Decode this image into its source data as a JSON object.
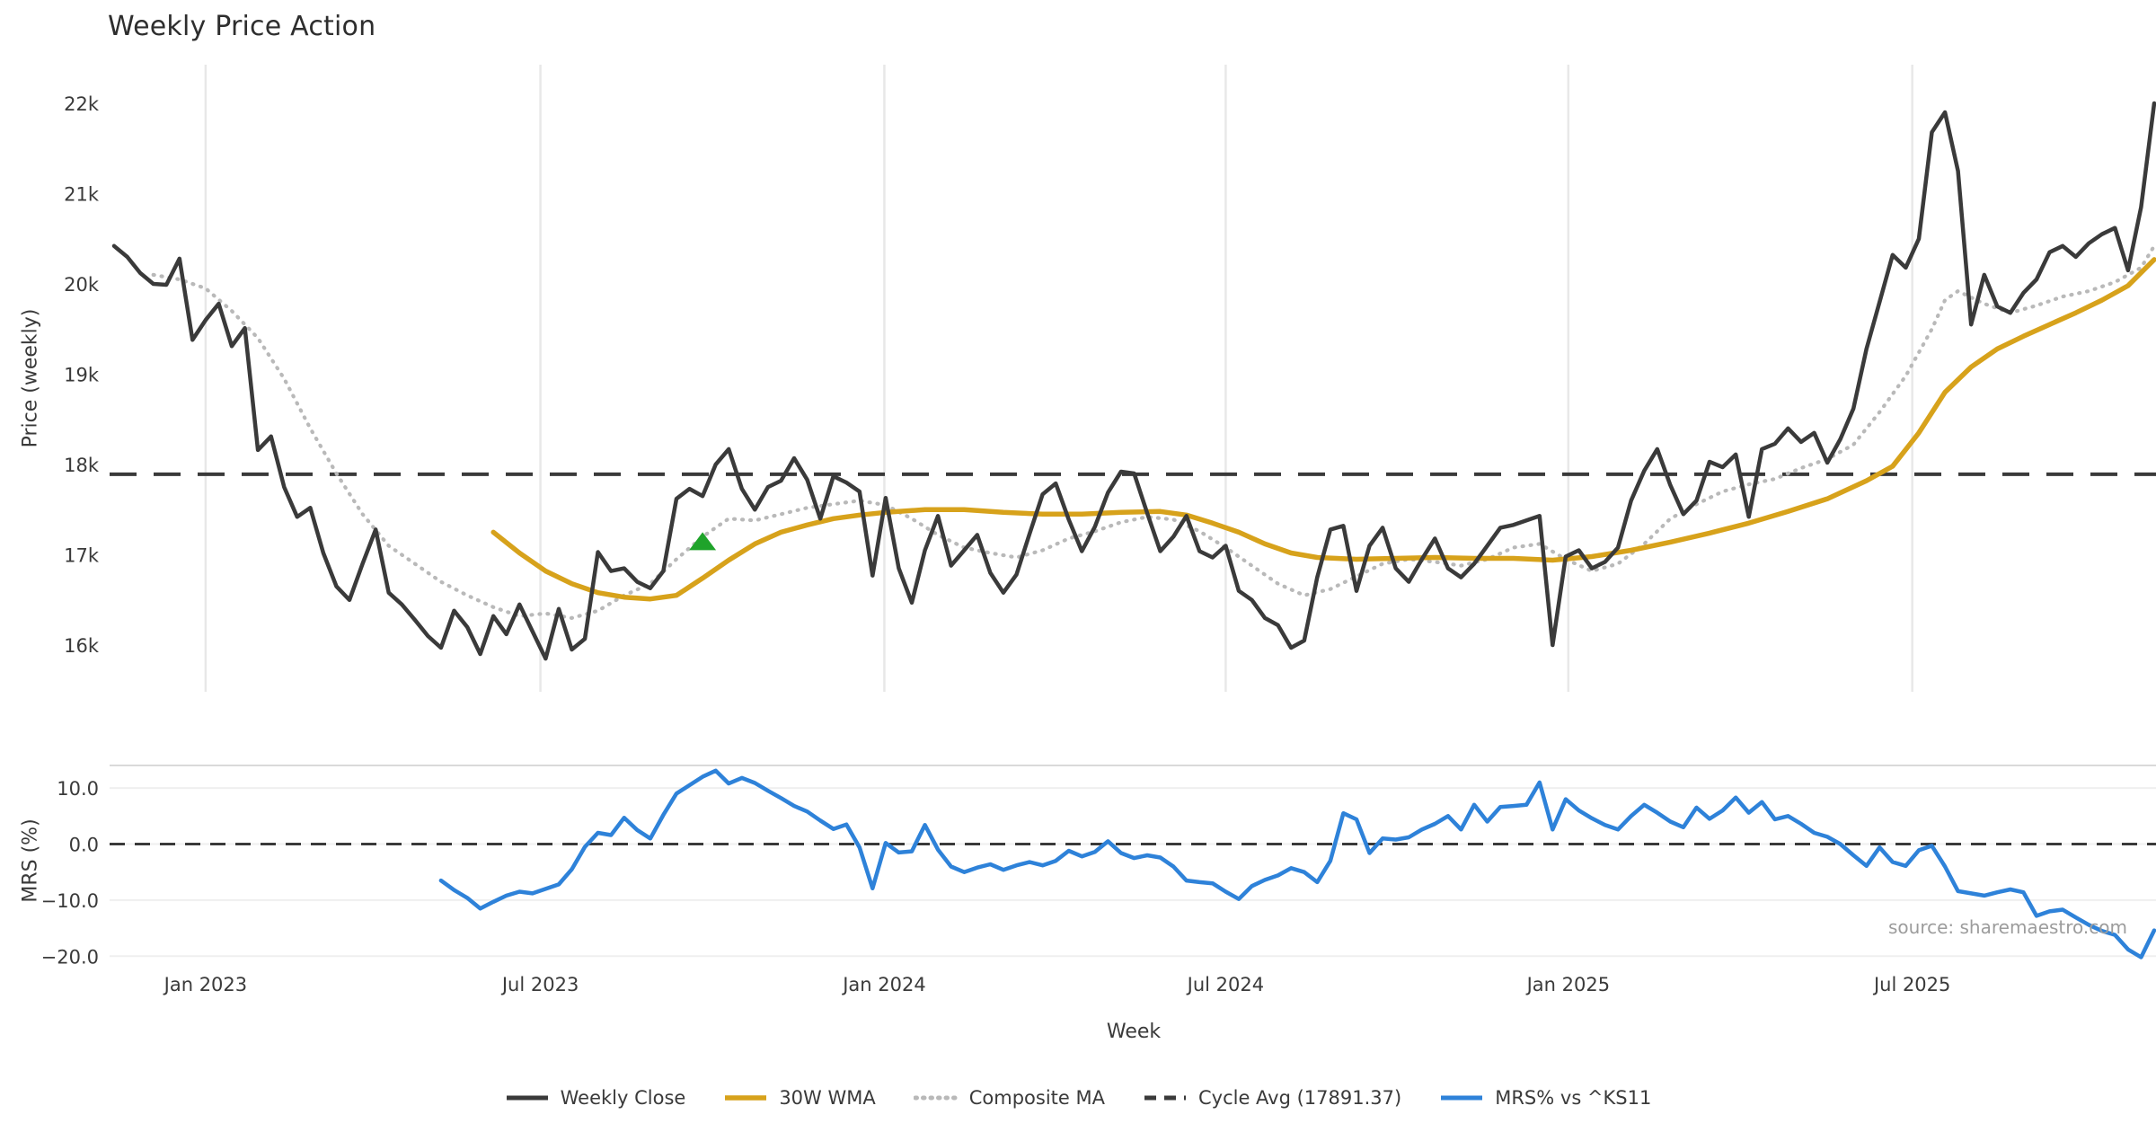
{
  "title": "Weekly Price Action",
  "source_note": "source: sharemaestro.com",
  "colors": {
    "close": "#3a3a3a",
    "wma": "#d7a21b",
    "composite": "#b9b9b9",
    "cycle": "#3a3a3a",
    "mrs": "#2e82d9",
    "signal": "#1fa32a",
    "grid": "#e8e8e8",
    "grid_minor": "#efefef",
    "panel_border": "#dadada",
    "text": "#3a3a3a",
    "muted_text": "#9c9c9c",
    "background": "#ffffff"
  },
  "x_axis": {
    "label": "Week",
    "weeks_total": 156,
    "ticks": [
      {
        "week": 7.0,
        "label": "Jan 2023"
      },
      {
        "week": 32.6,
        "label": "Jul 2023"
      },
      {
        "week": 58.9,
        "label": "Jan 2024"
      },
      {
        "week": 85.0,
        "label": "Jul 2024"
      },
      {
        "week": 111.2,
        "label": "Jan 2025"
      },
      {
        "week": 137.5,
        "label": "Jul 2025"
      }
    ]
  },
  "legend": [
    {
      "label": "Weekly Close",
      "series": "close",
      "style": "solid"
    },
    {
      "label": "30W WMA",
      "series": "wma",
      "style": "solid"
    },
    {
      "label": "Composite MA",
      "series": "composite",
      "style": "dotted"
    },
    {
      "label": "Cycle Avg (17891.37)",
      "series": "cycle",
      "style": "dashed"
    },
    {
      "label": "MRS% vs ^KS11",
      "series": "mrs",
      "style": "solid"
    }
  ],
  "chart_data": [
    {
      "type": "line",
      "panel": "price",
      "ylabel": "Price (weekly)",
      "ylim": [
        15450,
        22450
      ],
      "grid": "vertical-only",
      "yticks": [
        {
          "value": 22000,
          "label": "22k"
        },
        {
          "value": 21000,
          "label": "21k"
        },
        {
          "value": 20000,
          "label": "20k"
        },
        {
          "value": 19000,
          "label": "19k"
        },
        {
          "value": 18000,
          "label": "18k"
        },
        {
          "value": 17000,
          "label": "17k"
        },
        {
          "value": 16000,
          "label": "16k"
        }
      ],
      "cycle_avg": 17891.37,
      "signal_marker": {
        "shape": "triangle-up",
        "week": 45,
        "price": 17140,
        "color_key": "signal"
      },
      "series": [
        {
          "name": "Weekly Close",
          "key": "close",
          "start_week": 0,
          "values": [
            20420,
            20300,
            20120,
            20000,
            19990,
            20280,
            19380,
            19600,
            19780,
            19310,
            19510,
            18160,
            18310,
            17750,
            17420,
            17520,
            17020,
            16650,
            16500,
            16900,
            17280,
            16580,
            16450,
            16280,
            16100,
            15970,
            16380,
            16200,
            15900,
            16320,
            16120,
            16450,
            16150,
            15850,
            16400,
            15950,
            16070,
            17030,
            16820,
            16850,
            16700,
            16630,
            16820,
            17620,
            17730,
            17650,
            18000,
            18170,
            17730,
            17500,
            17750,
            17820,
            18070,
            17830,
            17400,
            17870,
            17800,
            17700,
            16770,
            17630,
            16850,
            16470,
            17050,
            17430,
            16880,
            17050,
            17220,
            16800,
            16580,
            16780,
            17230,
            17670,
            17790,
            17390,
            17040,
            17310,
            17690,
            17920,
            17900,
            17460,
            17040,
            17200,
            17430,
            17040,
            16970,
            17100,
            16600,
            16500,
            16300,
            16220,
            15970,
            16050,
            16750,
            17280,
            17320,
            16600,
            17100,
            17300,
            16850,
            16700,
            16950,
            17180,
            16850,
            16750,
            16900,
            17100,
            17300,
            17330,
            17380,
            17430,
            16000,
            16980,
            17050,
            16850,
            16920,
            17080,
            17600,
            17930,
            18170,
            17770,
            17450,
            17600,
            18030,
            17970,
            18110,
            17420,
            18170,
            18230,
            18400,
            18250,
            18350,
            18020,
            18280,
            18620,
            19280,
            19800,
            20320,
            20180,
            20500,
            21680,
            21900,
            21250,
            19550,
            20100,
            19750,
            19680,
            19900,
            20050,
            20350,
            20420,
            20300,
            20450,
            20550,
            20620,
            20150,
            20850,
            22000
          ]
        },
        {
          "name": "30W WMA",
          "key": "wma",
          "points": [
            [
              29,
              17250
            ],
            [
              31,
              17020
            ],
            [
              33,
              16820
            ],
            [
              35,
              16680
            ],
            [
              37,
              16580
            ],
            [
              39,
              16530
            ],
            [
              41,
              16510
            ],
            [
              43,
              16550
            ],
            [
              45,
              16740
            ],
            [
              47,
              16940
            ],
            [
              49,
              17120
            ],
            [
              51,
              17250
            ],
            [
              53,
              17330
            ],
            [
              55,
              17400
            ],
            [
              57,
              17440
            ],
            [
              59,
              17470
            ],
            [
              62,
              17500
            ],
            [
              65,
              17500
            ],
            [
              68,
              17470
            ],
            [
              71,
              17450
            ],
            [
              74,
              17450
            ],
            [
              77,
              17470
            ],
            [
              80,
              17480
            ],
            [
              82,
              17440
            ],
            [
              84,
              17350
            ],
            [
              86,
              17250
            ],
            [
              88,
              17120
            ],
            [
              90,
              17020
            ],
            [
              92,
              16970
            ],
            [
              95,
              16950
            ],
            [
              98,
              16960
            ],
            [
              101,
              16970
            ],
            [
              104,
              16960
            ],
            [
              107,
              16960
            ],
            [
              110,
              16940
            ],
            [
              113,
              16980
            ],
            [
              116,
              17050
            ],
            [
              119,
              17140
            ],
            [
              122,
              17240
            ],
            [
              125,
              17350
            ],
            [
              128,
              17480
            ],
            [
              131,
              17620
            ],
            [
              134,
              17820
            ],
            [
              136,
              17980
            ],
            [
              138,
              18350
            ],
            [
              140,
              18800
            ],
            [
              142,
              19080
            ],
            [
              144,
              19280
            ],
            [
              146,
              19420
            ],
            [
              148,
              19550
            ],
            [
              150,
              19680
            ],
            [
              152,
              19820
            ],
            [
              154,
              19980
            ],
            [
              156,
              20270
            ]
          ]
        },
        {
          "name": "Composite MA",
          "key": "composite",
          "points": [
            [
              3,
              20100
            ],
            [
              5,
              20050
            ],
            [
              7,
              19950
            ],
            [
              9,
              19700
            ],
            [
              11,
              19400
            ],
            [
              13,
              18950
            ],
            [
              15,
              18400
            ],
            [
              17,
              17900
            ],
            [
              19,
              17450
            ],
            [
              21,
              17100
            ],
            [
              23,
              16900
            ],
            [
              25,
              16700
            ],
            [
              27,
              16550
            ],
            [
              29,
              16420
            ],
            [
              31,
              16320
            ],
            [
              33,
              16350
            ],
            [
              35,
              16300
            ],
            [
              37,
              16380
            ],
            [
              39,
              16550
            ],
            [
              41,
              16680
            ],
            [
              43,
              16950
            ],
            [
              45,
              17200
            ],
            [
              47,
              17400
            ],
            [
              49,
              17380
            ],
            [
              51,
              17450
            ],
            [
              53,
              17520
            ],
            [
              55,
              17560
            ],
            [
              57,
              17600
            ],
            [
              59,
              17550
            ],
            [
              61,
              17400
            ],
            [
              63,
              17220
            ],
            [
              65,
              17080
            ],
            [
              67,
              17020
            ],
            [
              69,
              16970
            ],
            [
              71,
              17050
            ],
            [
              73,
              17180
            ],
            [
              75,
              17260
            ],
            [
              77,
              17360
            ],
            [
              79,
              17420
            ],
            [
              81,
              17390
            ],
            [
              83,
              17260
            ],
            [
              85,
              17080
            ],
            [
              87,
              16880
            ],
            [
              89,
              16680
            ],
            [
              91,
              16550
            ],
            [
              93,
              16620
            ],
            [
              95,
              16760
            ],
            [
              97,
              16900
            ],
            [
              99,
              16950
            ],
            [
              101,
              16920
            ],
            [
              103,
              16880
            ],
            [
              105,
              16950
            ],
            [
              107,
              17080
            ],
            [
              109,
              17120
            ],
            [
              111,
              16950
            ],
            [
              113,
              16820
            ],
            [
              115,
              16900
            ],
            [
              117,
              17120
            ],
            [
              119,
              17400
            ],
            [
              121,
              17560
            ],
            [
              123,
              17700
            ],
            [
              125,
              17780
            ],
            [
              127,
              17840
            ],
            [
              129,
              17960
            ],
            [
              131,
              18060
            ],
            [
              133,
              18220
            ],
            [
              135,
              18580
            ],
            [
              137,
              18980
            ],
            [
              139,
              19500
            ],
            [
              140,
              19820
            ],
            [
              141,
              19920
            ],
            [
              142,
              19850
            ],
            [
              143,
              19780
            ],
            [
              145,
              19680
            ],
            [
              147,
              19760
            ],
            [
              149,
              19860
            ],
            [
              151,
              19920
            ],
            [
              153,
              20020
            ],
            [
              155,
              20180
            ],
            [
              156,
              20420
            ]
          ]
        }
      ]
    },
    {
      "type": "line",
      "panel": "mrs",
      "ylabel": "MRS (%)",
      "ylim": [
        -22.5,
        14.0
      ],
      "grid": "horizontal-only",
      "yticks": [
        {
          "value": 10,
          "label": "10.0"
        },
        {
          "value": 0,
          "label": "0.0"
        },
        {
          "value": -10,
          "label": "−10.0"
        },
        {
          "value": -20,
          "label": "−20.0"
        }
      ],
      "zero_line": 0,
      "series": [
        {
          "name": "MRS% vs ^KS11",
          "key": "mrs",
          "start_week": 25,
          "values": [
            -6.5,
            -8.2,
            -9.6,
            -11.5,
            -10.3,
            -9.2,
            -8.5,
            -8.8,
            -8.0,
            -7.2,
            -4.5,
            -0.5,
            2.0,
            1.6,
            4.7,
            2.5,
            1.0,
            5.2,
            9.0,
            10.5,
            12.0,
            13.1,
            10.8,
            11.8,
            10.9,
            9.5,
            8.2,
            6.8,
            5.8,
            4.2,
            2.7,
            3.5,
            -0.6,
            -7.9,
            0.2,
            -1.5,
            -1.3,
            3.4,
            -1.0,
            -4.0,
            -5.0,
            -4.2,
            -3.6,
            -4.6,
            -3.8,
            -3.2,
            -3.8,
            -3.0,
            -1.2,
            -2.2,
            -1.4,
            0.5,
            -1.6,
            -2.5,
            -2.0,
            -2.4,
            -4.0,
            -6.5,
            -6.8,
            -7.0,
            -8.5,
            -9.8,
            -7.5,
            -6.4,
            -5.6,
            -4.3,
            -5.0,
            -6.8,
            -3.0,
            5.5,
            4.4,
            -1.6,
            1.0,
            0.8,
            1.2,
            2.6,
            3.6,
            5.0,
            2.6,
            7.0,
            4.0,
            6.6,
            6.8,
            7.0,
            11.0,
            2.6,
            8.0,
            6.0,
            4.6,
            3.4,
            2.6,
            5.0,
            7.0,
            5.6,
            4.0,
            3.0,
            6.5,
            4.5,
            6.0,
            8.3,
            5.6,
            7.5,
            4.4,
            5.0,
            3.6,
            2.0,
            1.3,
            0.0,
            -2.0,
            -3.9,
            -0.6,
            -3.2,
            -3.9,
            -1.1,
            -0.3,
            -4.0,
            -8.4,
            -8.8,
            -9.2,
            -8.6,
            -8.1,
            -8.6,
            -12.8,
            -12.0,
            -11.7,
            -13.1,
            -14.4,
            -15.5,
            -16.2,
            -18.8,
            -20.2,
            -15.4
          ]
        }
      ]
    }
  ]
}
